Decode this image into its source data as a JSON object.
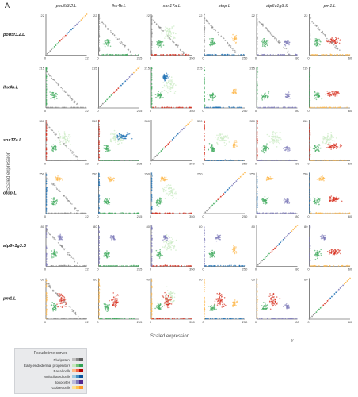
{
  "panel_label": "A",
  "chart_data": {
    "type": "scatter",
    "layout": "pairwise scatter matrix",
    "genes": [
      "pou5f3.2.L",
      "lhx4b.L",
      "sox17a.L",
      "otop.L",
      "atp6v1g3.S",
      "pm1.L"
    ],
    "xlabel": "Scaled expression",
    "ylabel": "Scaled expression",
    "x_note": "y",
    "tick_max": [
      "22",
      "215",
      "350",
      "250",
      "80",
      "60"
    ],
    "tick_min": "0",
    "legend": {
      "title": "Pseudotime curves",
      "entries": [
        {
          "label": "Pluripotent",
          "colors": [
            "#bdbdbd",
            "#8c8c8c",
            "#5f5f5f"
          ]
        },
        {
          "label": "Early endodermal progenitors",
          "colors": [
            "#c7e9c0",
            "#74c476",
            "#31a354"
          ]
        },
        {
          "label": "Basal cells",
          "colors": [
            "#fdbb84",
            "#ef6548",
            "#b30000"
          ]
        },
        {
          "label": "Multiciliated cells",
          "colors": [
            "#9ecae1",
            "#4292c6",
            "#08519c"
          ]
        },
        {
          "label": "Ionocytes",
          "colors": [
            "#bcbddc",
            "#807dba",
            "#54278f"
          ]
        },
        {
          "label": "Goblet cells",
          "colors": [
            "#fee391",
            "#fec44f",
            "#fe9929"
          ]
        }
      ]
    },
    "grid": false
  },
  "colors": {
    "pluripotent": "#8c8c8c",
    "early_endo": "#41ab5d",
    "basal": "#d7301f",
    "multiciliated": "#2171b5",
    "ionocytes": "#807dba",
    "goblet": "#fdb84d",
    "light_green": "#c7e9c0"
  }
}
